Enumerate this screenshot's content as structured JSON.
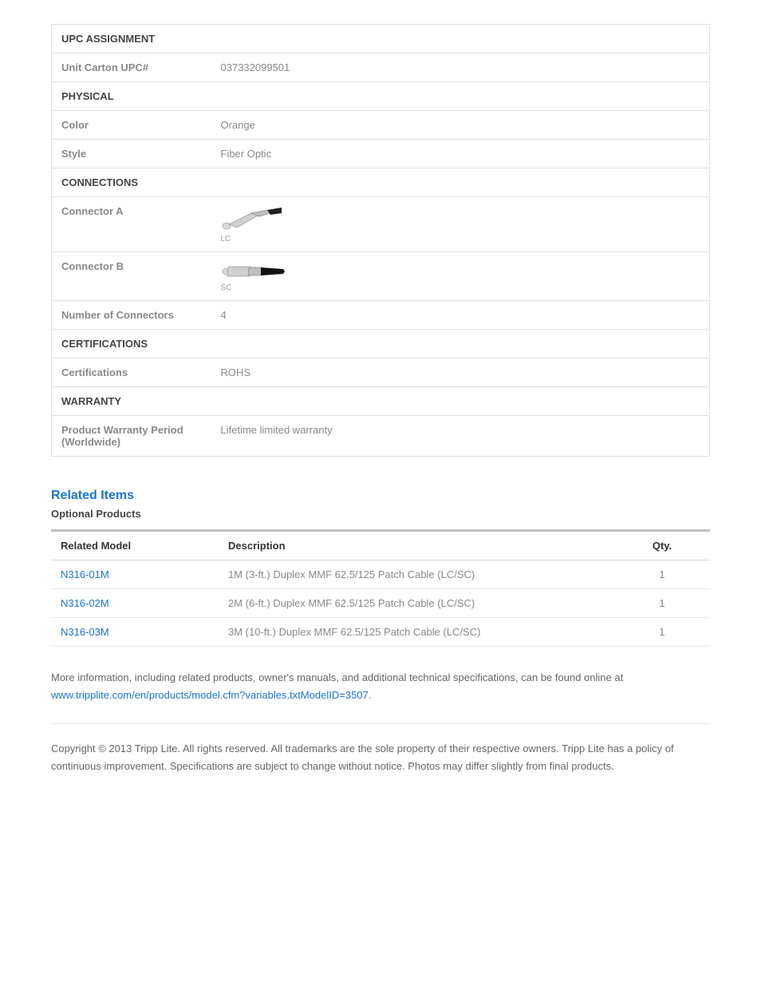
{
  "spec_sections": [
    {
      "title": "UPC ASSIGNMENT",
      "rows": [
        {
          "label": "Unit Carton UPC#",
          "value": "037332099501"
        }
      ]
    },
    {
      "title": "PHYSICAL",
      "rows": [
        {
          "label": "Color",
          "value": "Orange"
        },
        {
          "label": "Style",
          "value": "Fiber Optic"
        }
      ]
    },
    {
      "title": "CONNECTIONS",
      "rows": [
        {
          "label": "Connector A",
          "value": "",
          "connector": "LC"
        },
        {
          "label": "Connector B",
          "value": "",
          "connector": "SC"
        },
        {
          "label": "Number of Connectors",
          "value": "4"
        }
      ]
    },
    {
      "title": "CERTIFICATIONS",
      "rows": [
        {
          "label": "Certifications",
          "value": "ROHS"
        }
      ]
    },
    {
      "title": "WARRANTY",
      "rows": [
        {
          "label": "Product Warranty Period (Worldwide)",
          "value": "Lifetime limited warranty"
        }
      ]
    }
  ],
  "related": {
    "heading": "Related Items",
    "subheading": "Optional Products",
    "columns": {
      "model": "Related Model",
      "desc": "Description",
      "qty": "Qty."
    },
    "rows": [
      {
        "model": "N316-01M",
        "desc": "1M (3-ft.) Duplex MMF 62.5/125 Patch Cable (LC/SC)",
        "qty": "1"
      },
      {
        "model": "N316-02M",
        "desc": "2M (6-ft.) Duplex MMF 62.5/125 Patch Cable (LC/SC)",
        "qty": "1"
      },
      {
        "model": "N316-03M",
        "desc": "3M (10-ft.) Duplex MMF 62.5/125 Patch Cable (LC/SC)",
        "qty": "1"
      }
    ]
  },
  "more_info": {
    "text": "More information, including related products, owner's manuals, and additional technical specifications, can be found online at ",
    "link": "www.tripplite.com/en/products/model.cfm?variables.txtModelID=3507",
    "suffix": "."
  },
  "copyright": "Copyright © 2013 Tripp Lite. All rights reserved. All trademarks are the sole property of their respective owners. Tripp Lite has a policy of continuous improvement. Specifications are subject to change without notice. Photos may differ slightly from final products.",
  "colors": {
    "link": "#1a75cf",
    "border": "#e0e0e0",
    "text_muted": "#888",
    "text": "#666",
    "heading": "#444"
  }
}
